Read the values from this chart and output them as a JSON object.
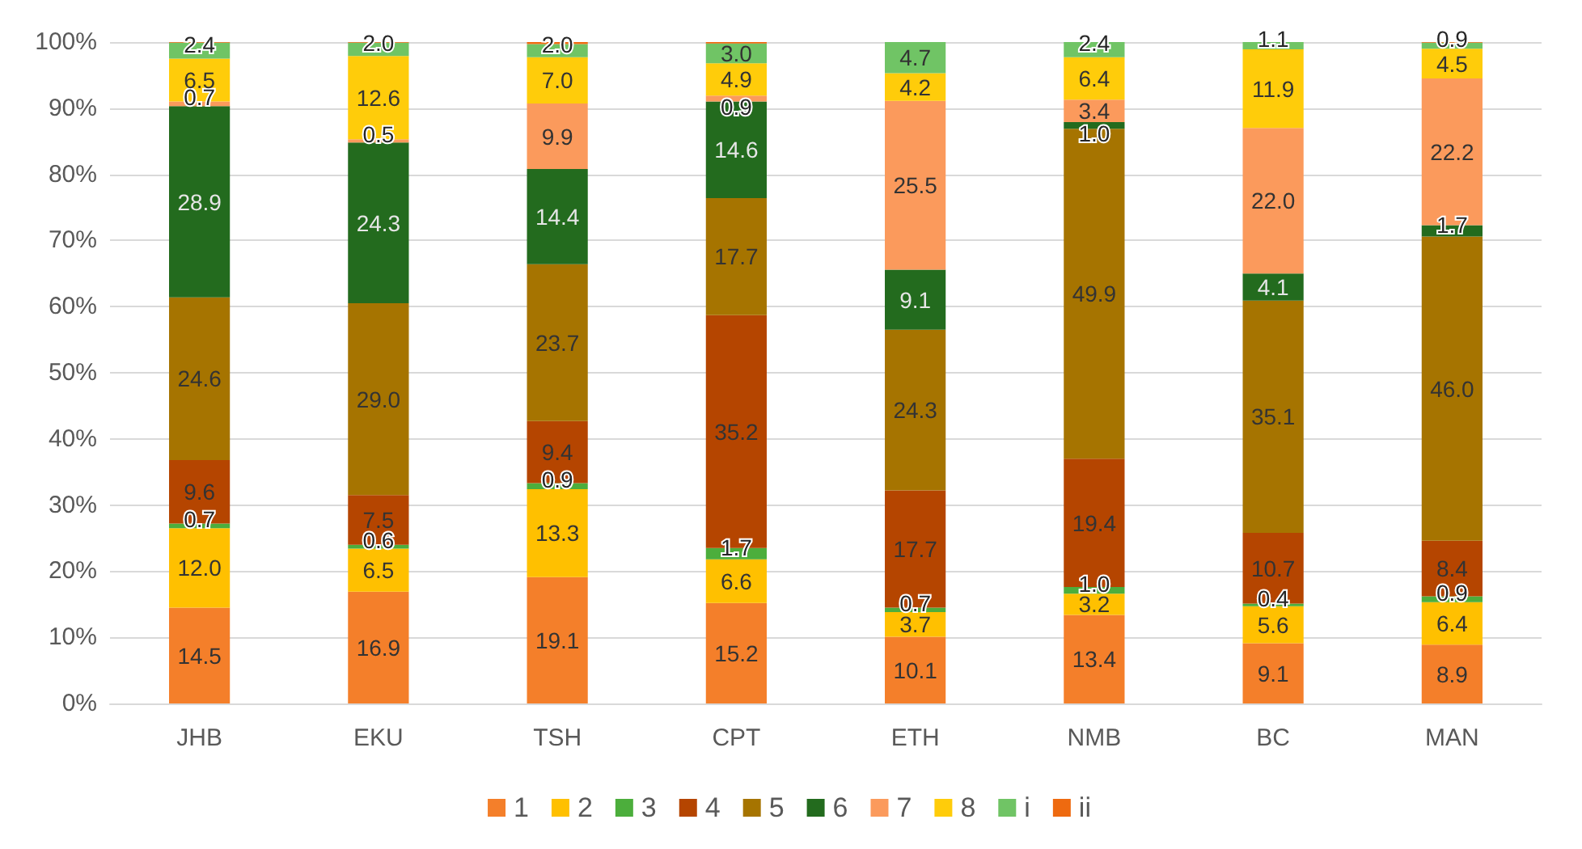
{
  "chart_data": {
    "type": "bar",
    "stacked": true,
    "categories": [
      "JHB",
      "EKU",
      "TSH",
      "CPT",
      "ETH",
      "NMB",
      "BC",
      "MAN"
    ],
    "series": [
      {
        "name": "1",
        "color": "#f47f2a",
        "values": [
          14.5,
          16.9,
          19.1,
          15.2,
          10.1,
          13.4,
          9.1,
          8.9
        ],
        "value_labels": [
          "14.5",
          "16.9",
          "19.1",
          "15.2",
          "10.1",
          "13.4",
          "9.1",
          "8.9"
        ]
      },
      {
        "name": "2",
        "color": "#ffc000",
        "values": [
          12.0,
          6.5,
          13.3,
          6.6,
          3.7,
          3.2,
          5.6,
          6.4
        ],
        "value_labels": [
          "12.0",
          "6.5",
          "13.3",
          "6.6",
          "3.7",
          "3.2",
          "5.6",
          "6.4"
        ]
      },
      {
        "name": "3",
        "color": "#4cae3c",
        "values": [
          0.7,
          0.6,
          0.9,
          1.7,
          0.7,
          1.0,
          0.4,
          0.9
        ],
        "value_labels": [
          "0.7",
          "0.6",
          "0.9",
          "1.7",
          "0.7",
          "1.0",
          "0.4",
          "0.9"
        ]
      },
      {
        "name": "4",
        "color": "#b54500",
        "values": [
          9.6,
          7.5,
          9.4,
          35.2,
          17.7,
          19.4,
          10.7,
          8.4
        ],
        "value_labels": [
          "9.6",
          "7.5",
          "9.4",
          "35.2",
          "17.7",
          "19.4",
          "10.7",
          "8.4"
        ]
      },
      {
        "name": "5",
        "color": "#a67400",
        "values": [
          24.6,
          29.0,
          23.7,
          17.7,
          24.3,
          49.9,
          35.1,
          46.0
        ],
        "value_labels": [
          "24.6",
          "29.0",
          "23.7",
          "17.7",
          "24.3",
          "49.9",
          "35.1",
          "46.0"
        ]
      },
      {
        "name": "6",
        "color": "#236b1e",
        "values": [
          28.9,
          24.3,
          14.4,
          14.6,
          9.1,
          1.0,
          4.1,
          1.7
        ],
        "value_labels": [
          "28.9",
          "24.3",
          "14.4",
          "14.6",
          "9.1",
          "1.0",
          "4.1",
          "1.7"
        ]
      },
      {
        "name": "7",
        "color": "#fb9a5c",
        "values": [
          0.7,
          0.5,
          9.9,
          0.9,
          25.5,
          3.4,
          22.0,
          22.2
        ],
        "value_labels": [
          "0.7",
          "0.5",
          "9.9",
          "0.9",
          "25.5",
          "3.4",
          "22.0",
          "22.2"
        ]
      },
      {
        "name": "8",
        "color": "#ffcc0a",
        "values": [
          6.5,
          12.6,
          7.0,
          4.9,
          4.2,
          6.4,
          11.9,
          4.5
        ],
        "value_labels": [
          "6.5",
          "12.6",
          "7.0",
          "4.9",
          "4.2",
          "6.4",
          "11.9",
          "4.5"
        ]
      },
      {
        "name": "i",
        "color": "#70c465",
        "values": [
          2.4,
          2.0,
          2.0,
          3.0,
          4.7,
          2.4,
          1.1,
          0.9
        ],
        "value_labels": [
          "2.4",
          "2.0",
          "2.0",
          "3.0",
          "4.7",
          "2.4",
          "1.1",
          "0.9"
        ]
      },
      {
        "name": "ii",
        "color": "#ee6a10",
        "values": [
          0.1,
          0.1,
          0.3,
          0.2,
          0.1,
          0.1,
          0.1,
          0.1
        ],
        "value_labels": [
          null,
          null,
          null,
          null,
          null,
          null,
          null,
          null
        ]
      }
    ],
    "ylim": [
      0,
      100
    ],
    "yticks": [
      {
        "value": 0,
        "label": "0%"
      },
      {
        "value": 10,
        "label": "10%"
      },
      {
        "value": 20,
        "label": "20%"
      },
      {
        "value": 30,
        "label": "30%"
      },
      {
        "value": 40,
        "label": "40%"
      },
      {
        "value": 50,
        "label": "50%"
      },
      {
        "value": 60,
        "label": "60%"
      },
      {
        "value": 70,
        "label": "70%"
      },
      {
        "value": 80,
        "label": "80%"
      },
      {
        "value": 90,
        "label": "90%"
      },
      {
        "value": 100,
        "label": "100%"
      }
    ],
    "grid": "y",
    "legend": "bottom"
  }
}
